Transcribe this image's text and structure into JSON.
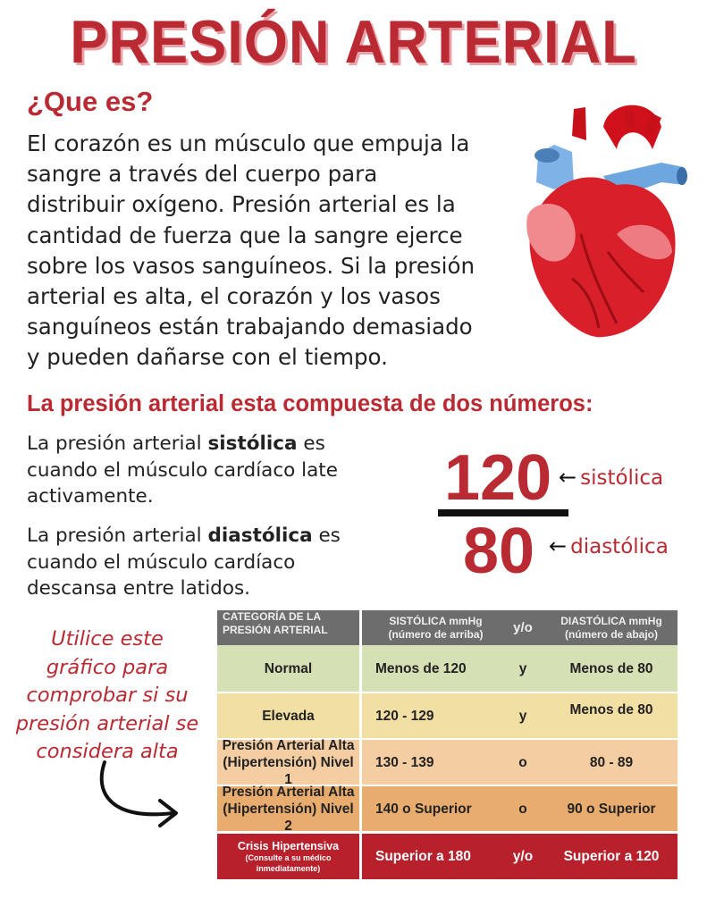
{
  "title": "PRESIÓN ARTERIAL",
  "what_is": {
    "heading": "¿Que es?",
    "lines": [
      "El corazón es un músculo que empuja la",
      "sangre a través del cuerpo para",
      "distribuir oxígeno. Presión arterial es la",
      "cantidad de fuerza que la sangre ejerce",
      "sobre los vasos sanguíneos. Si la presión",
      "arterial es alta, el corazón y los vasos",
      "sanguíneos están trabajando demasiado",
      "y pueden dañarse con el tiempo."
    ]
  },
  "two_numbers": {
    "heading": "La presión arterial esta compuesta de dos números:",
    "systolic_para": {
      "pre": "La presión arterial ",
      "bold": "sistólica",
      "post": " es",
      "lines": [
        "cuando el músculo cardíaco late",
        "activamente."
      ]
    },
    "diastolic_para": {
      "pre": "La presión arterial ",
      "bold": "diastólica",
      "post": " es",
      "lines": [
        "cuando el músculo cardíaco",
        "descansa entre latidos."
      ]
    },
    "example": {
      "top": "120",
      "bottom": "80",
      "arrow": "←",
      "top_label": "sistólica",
      "bottom_label": "diastólica"
    }
  },
  "note": [
    "Utilice este",
    "gráfico para",
    "comprobar si su",
    "presión arterial se",
    "considera alta"
  ],
  "table": {
    "headers": {
      "category": [
        "CATEGORÍA DE LA",
        "PRESIÓN ARTERIAL"
      ],
      "systolic": [
        "SISTÓLICA mmHg",
        "(número de arriba)"
      ],
      "andor": "y/o",
      "diastolic": [
        "DIASTÓLICA mmHg",
        "(número de abajo)"
      ]
    },
    "rows": [
      {
        "category": [
          "Normal"
        ],
        "systolic": "Menos de 120",
        "andor": "y",
        "diastolic": "Menos de 80",
        "color": "#d5e0b5"
      },
      {
        "category": [
          "Elevada"
        ],
        "systolic": "120 - 129",
        "andor": "y",
        "diastolic": "Menos de 80",
        "color": "#f2dfa3"
      },
      {
        "category": [
          "Presión Arterial Alta",
          "(Hipertensión) Nivel 1"
        ],
        "systolic": "130 - 139",
        "andor": "o",
        "diastolic": "80 - 89",
        "color": "#f4cda3"
      },
      {
        "category": [
          "Presión Arterial Alta",
          "(Hipertensión) Nivel 2"
        ],
        "systolic": "140 o Superior",
        "andor": "o",
        "diastolic": "90 o Superior",
        "color": "#e9ac6f"
      },
      {
        "category": [
          "Crisis Hipertensiva",
          "(Consulte a su médico",
          "inmediatamente)"
        ],
        "systolic": "Superior a 180",
        "andor": "y/o",
        "diastolic": "Superior a 120",
        "color": "#b8202b"
      }
    ],
    "header_color": "#6d6d6d"
  }
}
